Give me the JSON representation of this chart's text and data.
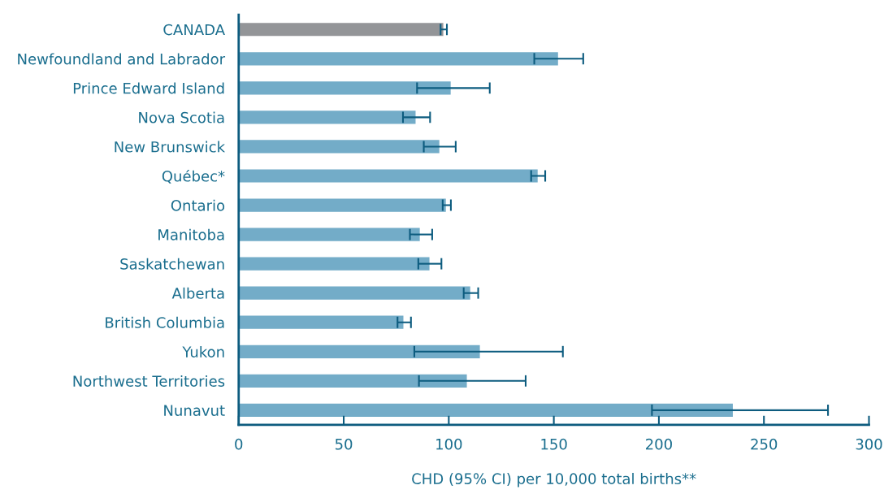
{
  "chart_data": {
    "type": "bar",
    "orientation": "horizontal",
    "xlabel": "CHD (95% CI) per 10,000 total births**",
    "categories": [
      "CANADA",
      "Newfoundland and Labrador",
      "Prince Edward Island",
      "Nova Scotia",
      "New Brunswick",
      "Québec*",
      "Ontario",
      "Manitoba",
      "Saskatchewan",
      "Alberta",
      "British Columbia",
      "Yukon",
      "Northwest Territories",
      "Nunavut"
    ],
    "values": [
      97.4,
      152.0,
      100.9,
      84.2,
      95.5,
      142.3,
      98.6,
      86.2,
      90.8,
      110.2,
      78.4,
      114.8,
      108.6,
      235.2
    ],
    "errors": [
      [
        96.1,
        99.1
      ],
      [
        140.7,
        164.0
      ],
      [
        84.9,
        119.5
      ],
      [
        78.2,
        91.1
      ],
      [
        88.1,
        103.3
      ],
      [
        139.2,
        145.9
      ],
      [
        97.1,
        101.0
      ],
      [
        81.5,
        92.1
      ],
      [
        85.5,
        96.5
      ],
      [
        107.1,
        114.0
      ],
      [
        75.6,
        82.0
      ],
      [
        83.6,
        154.3
      ],
      [
        85.8,
        136.6
      ],
      [
        196.7,
        280.5
      ]
    ],
    "colors": [
      "#939598",
      "#73acc8",
      "#73acc8",
      "#73acc8",
      "#73acc8",
      "#73acc8",
      "#73acc8",
      "#73acc8",
      "#73acc8",
      "#73acc8",
      "#73acc8",
      "#73acc8",
      "#73acc8",
      "#73acc8"
    ],
    "xlim": [
      0,
      300
    ],
    "xticks": [
      0,
      50,
      100,
      150,
      200,
      250,
      300
    ],
    "grid": false,
    "legend": false
  }
}
